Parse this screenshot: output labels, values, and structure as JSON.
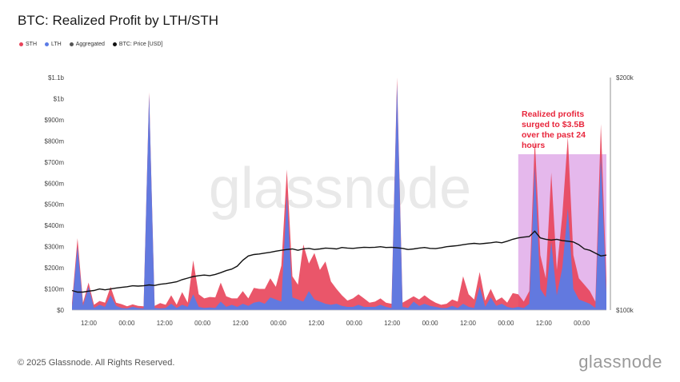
{
  "page": {
    "title": "BTC: Realized Profit by LTH/STH",
    "footer": "© 2025 Glassnode. All Rights Reserved.",
    "brand": "glassnode",
    "watermark": "glassnode"
  },
  "chart_data": {
    "type": "area",
    "title": "BTC: Realized Profit by LTH/STH",
    "legend": [
      {
        "name": "STH",
        "color": "#e8445a"
      },
      {
        "name": "LTH",
        "color": "#5b7be6"
      },
      {
        "name": "Aggregated",
        "color": "#555555"
      },
      {
        "name": "BTC: Price [USD]",
        "color": "#111111"
      }
    ],
    "legend_placement": "top-left",
    "y_left": {
      "ticks": [
        "$0",
        "$100m",
        "$200m",
        "$300m",
        "$400m",
        "$500m",
        "$600m",
        "$700m",
        "$800m",
        "$900m",
        "$1b",
        "$1.1b"
      ],
      "range": [
        0,
        1100
      ]
    },
    "y_right": {
      "ticks": [
        "$100k",
        "$200k"
      ],
      "scale": "log"
    },
    "x_ticks": [
      "12:00",
      "00:00",
      "12:00",
      "00:00",
      "12:00",
      "00:00",
      "12:00",
      "00:00",
      "12:00",
      "00:00",
      "12:00",
      "00:00",
      "12:00",
      "00:00"
    ],
    "grid": false,
    "annotation": {
      "lines": [
        "Realized profits",
        "surged to $3.5B",
        "over the past 24",
        "hours"
      ],
      "color": "#e8263c",
      "highlight_color": "#dca0e6"
    },
    "series": [
      {
        "name": "LTH",
        "unit": "USD millions",
        "values": [
          15,
          300,
          20,
          110,
          10,
          25,
          15,
          70,
          20,
          10,
          8,
          15,
          10,
          8,
          1020,
          10,
          8,
          10,
          30,
          10,
          25,
          15,
          75,
          15,
          10,
          12,
          10,
          40,
          15,
          25,
          15,
          30,
          20,
          35,
          40,
          30,
          60,
          50,
          40,
          545,
          60,
          50,
          40,
          90,
          50,
          40,
          30,
          25,
          30,
          20,
          15,
          15,
          25,
          15,
          15,
          15,
          25,
          15,
          10,
          1070,
          15,
          10,
          40,
          20,
          30,
          20,
          15,
          10,
          10,
          20,
          10,
          30,
          15,
          10,
          110,
          15,
          60,
          20,
          30,
          15,
          10,
          15,
          10,
          30,
          680,
          100,
          60,
          320,
          70,
          200,
          480,
          100,
          50,
          40,
          30,
          10,
          730,
          80
        ]
      },
      {
        "name": "STH",
        "unit": "USD millions",
        "values": [
          20,
          40,
          15,
          20,
          15,
          18,
          20,
          40,
          15,
          18,
          10,
          12,
          10,
          10,
          10,
          10,
          25,
          15,
          40,
          15,
          60,
          20,
          160,
          60,
          45,
          50,
          50,
          90,
          50,
          30,
          40,
          60,
          35,
          70,
          60,
          70,
          90,
          60,
          170,
          120,
          100,
          70,
          270,
          130,
          220,
          150,
          200,
          110,
          70,
          50,
          30,
          40,
          50,
          40,
          20,
          25,
          30,
          20,
          20,
          30,
          20,
          40,
          25,
          30,
          40,
          30,
          20,
          15,
          20,
          30,
          30,
          130,
          60,
          40,
          70,
          30,
          40,
          25,
          30,
          20,
          70,
          60,
          30,
          60,
          130,
          160,
          90,
          330,
          120,
          250,
          340,
          160,
          100,
          80,
          60,
          30,
          150,
          60
        ]
      },
      {
        "name": "BTC: Price [USD]",
        "unit": "USD thousands",
        "values": [
          106,
          105.5,
          105.5,
          105.8,
          106,
          106.5,
          106.2,
          106.5,
          106.8,
          107,
          107.2,
          107.5,
          107.4,
          107.5,
          107.8,
          107.6,
          108,
          108.2,
          108.5,
          108.8,
          109.5,
          110,
          110.5,
          110.8,
          111,
          110.8,
          111.2,
          111.8,
          112.5,
          113,
          114,
          116,
          117.5,
          118,
          118.2,
          118.5,
          118.8,
          119.2,
          119.5,
          119.8,
          120,
          119.5,
          120,
          120.2,
          119.8,
          120,
          120.3,
          120.2,
          120,
          120.5,
          120.3,
          120.2,
          120.4,
          120.6,
          120.5,
          120.6,
          120.8,
          120.5,
          120.6,
          120.4,
          120.2,
          119.8,
          120,
          120.3,
          120.5,
          120.2,
          120.1,
          120.4,
          120.8,
          121,
          121.2,
          121.5,
          121.8,
          122,
          121.8,
          122,
          122.2,
          122.5,
          122.2,
          122.8,
          123.5,
          124,
          124.3,
          124.5,
          126.5,
          124,
          123.5,
          123.2,
          123.5,
          123,
          122.8,
          122.5,
          121.5,
          120,
          119.5,
          118.5,
          117.5,
          117.8
        ]
      }
    ]
  }
}
